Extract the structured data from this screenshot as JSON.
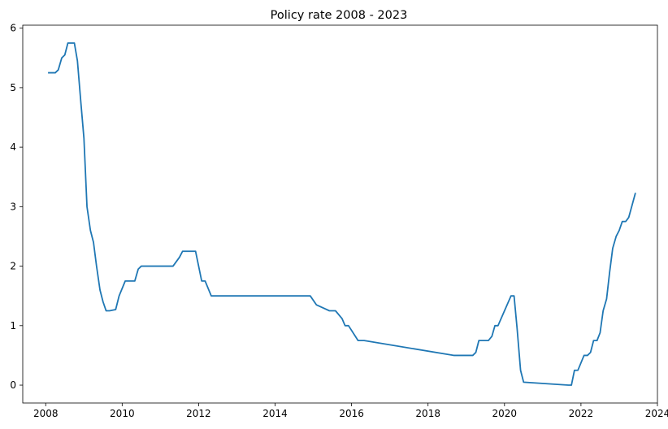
{
  "chart_data": {
    "type": "line",
    "title": "Policy rate 2008 - 2023",
    "xlabel": "",
    "ylabel": "",
    "xlim": [
      2007.4,
      2024.0
    ],
    "ylim": [
      -0.3,
      6.05
    ],
    "x_ticks": [
      2008,
      2010,
      2012,
      2014,
      2016,
      2018,
      2020,
      2022,
      2024
    ],
    "x_tick_labels": [
      "2008",
      "2010",
      "2012",
      "2014",
      "2016",
      "2018",
      "2020",
      "2022",
      "2024"
    ],
    "y_ticks": [
      0,
      1,
      2,
      3,
      4,
      5,
      6
    ],
    "y_tick_labels": [
      "0",
      "1",
      "2",
      "3",
      "4",
      "5",
      "6"
    ],
    "grid": false,
    "line_color": "#1f77b4",
    "series": [
      {
        "x": [
          2008.08,
          2008.25,
          2008.33,
          2008.42,
          2008.5,
          2008.58,
          2008.75,
          2008.83,
          2008.92,
          2009.0,
          2009.08,
          2009.17,
          2009.25,
          2009.33,
          2009.42,
          2009.5,
          2009.58,
          2009.67,
          2009.83,
          2009.92,
          2010.08,
          2010.33,
          2010.42,
          2010.5,
          2011.33,
          2011.5,
          2011.58,
          2011.92,
          2012.08,
          2012.17,
          2012.33,
          2014.92,
          2015.08,
          2015.42,
          2015.5,
          2015.58,
          2015.75,
          2015.83,
          2015.92,
          2016.17,
          2016.25,
          2016.33,
          2018.67,
          2018.75,
          2018.83,
          2019.17,
          2019.25,
          2019.33,
          2019.42,
          2019.5,
          2019.58,
          2019.67,
          2019.75,
          2019.83,
          2020.17,
          2020.25,
          2020.33,
          2020.42,
          2020.5,
          2021.67,
          2021.75,
          2021.83,
          2021.92,
          2022.08,
          2022.17,
          2022.25,
          2022.33,
          2022.42,
          2022.5,
          2022.58,
          2022.67,
          2022.75,
          2022.83,
          2022.92,
          2023.0,
          2023.08,
          2023.17,
          2023.25,
          2023.42
        ],
        "y": [
          5.25,
          5.25,
          5.3,
          5.5,
          5.55,
          5.75,
          5.75,
          5.45,
          4.75,
          4.15,
          3.0,
          2.6,
          2.4,
          2.0,
          1.6,
          1.4,
          1.25,
          1.25,
          1.27,
          1.5,
          1.75,
          1.75,
          1.95,
          2.0,
          2.0,
          2.15,
          2.25,
          2.25,
          1.75,
          1.75,
          1.5,
          1.5,
          1.35,
          1.25,
          1.25,
          1.25,
          1.12,
          1.0,
          1.0,
          0.75,
          0.75,
          0.75,
          0.5,
          0.5,
          0.5,
          0.5,
          0.55,
          0.75,
          0.75,
          0.75,
          0.75,
          0.82,
          1.0,
          1.0,
          1.5,
          1.5,
          0.95,
          0.25,
          0.05,
          0.0,
          0.0,
          0.25,
          0.25,
          0.5,
          0.5,
          0.55,
          0.75,
          0.75,
          0.88,
          1.25,
          1.45,
          1.9,
          2.3,
          2.5,
          2.6,
          2.75,
          2.75,
          2.82,
          3.22
        ]
      }
    ]
  }
}
